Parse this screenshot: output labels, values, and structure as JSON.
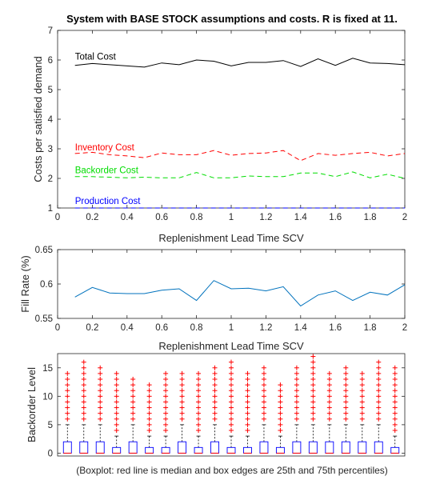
{
  "title": "System with BASE STOCK assumptions and costs.  R is fixed at 11.",
  "caption": "(Boxplot: red line is median and box edges are 25th and 75th percentiles)",
  "colors": {
    "axis": "#262626",
    "total": "#000000",
    "inventory": "#ff0000",
    "backorder": "#00dd00",
    "production": "#0000ff",
    "fill": "#0072bd",
    "box": "#0000ff",
    "outlier": "#ff0000"
  },
  "chart_data": [
    {
      "type": "line",
      "title": "System with BASE STOCK assumptions and costs.  R is fixed at 11.",
      "xlabel": "Replenishment Lead Time SCV",
      "ylabel": "Costs per satisfied demand",
      "xlim": [
        0,
        2
      ],
      "ylim": [
        1,
        7
      ],
      "xticks": [
        "0",
        "0.2",
        "0.4",
        "0.6",
        "0.8",
        "1",
        "1.2",
        "1.4",
        "1.6",
        "1.8",
        "2"
      ],
      "yticks": [
        "1",
        "2",
        "3",
        "4",
        "5",
        "6",
        "7"
      ],
      "x": [
        0.1,
        0.2,
        0.3,
        0.4,
        0.5,
        0.6,
        0.7,
        0.8,
        0.9,
        1.0,
        1.1,
        1.2,
        1.3,
        1.4,
        1.5,
        1.6,
        1.7,
        1.8,
        1.9,
        2.0
      ],
      "series": [
        {
          "name": "Total Cost",
          "style": "solid",
          "color": "#000000",
          "values": [
            5.82,
            5.88,
            5.84,
            5.8,
            5.76,
            5.9,
            5.84,
            6.0,
            5.96,
            5.8,
            5.92,
            5.92,
            5.98,
            5.78,
            6.04,
            5.82,
            6.06,
            5.9,
            5.88,
            5.84
          ]
        },
        {
          "name": "Inventory Cost",
          "style": "dashed",
          "color": "#ff0000",
          "values": [
            2.84,
            2.88,
            2.8,
            2.76,
            2.7,
            2.86,
            2.8,
            2.8,
            2.94,
            2.78,
            2.84,
            2.86,
            2.94,
            2.6,
            2.84,
            2.78,
            2.84,
            2.88,
            2.76,
            2.84
          ]
        },
        {
          "name": "Backorder Cost",
          "style": "dashed",
          "color": "#00dd00",
          "values": [
            2.06,
            2.06,
            2.04,
            2.02,
            2.04,
            2.02,
            2.02,
            2.2,
            2.02,
            2.02,
            2.08,
            2.06,
            2.06,
            2.18,
            2.18,
            2.06,
            2.22,
            2.02,
            2.14,
            2.0
          ]
        },
        {
          "name": "Production Cost",
          "style": "dashed",
          "color": "#0000ff",
          "values": [
            1.0,
            1.0,
            1.0,
            1.0,
            1.0,
            1.0,
            1.0,
            1.0,
            1.0,
            1.0,
            1.0,
            1.0,
            1.0,
            1.0,
            1.0,
            1.0,
            1.0,
            1.0,
            1.0,
            1.0
          ]
        }
      ],
      "annotations": [
        "Total Cost",
        "Inventory Cost",
        "Backorder Cost",
        "Production Cost"
      ]
    },
    {
      "type": "line",
      "xlabel": "Replenishment Lead Time SCV",
      "ylabel": "Fill Rate (%)",
      "xlim": [
        0,
        2
      ],
      "ylim": [
        0.55,
        0.65
      ],
      "xticks": [
        "0",
        "0.2",
        "0.4",
        "0.6",
        "0.8",
        "1",
        "1.2",
        "1.4",
        "1.6",
        "1.8",
        "2"
      ],
      "yticks": [
        "0.55",
        "0.6",
        "0.65"
      ],
      "x": [
        0.1,
        0.2,
        0.3,
        0.4,
        0.5,
        0.6,
        0.7,
        0.8,
        0.9,
        1.0,
        1.1,
        1.2,
        1.3,
        1.4,
        1.5,
        1.6,
        1.7,
        1.8,
        1.9,
        2.0
      ],
      "series": [
        {
          "color": "#0072bd",
          "values": [
            0.581,
            0.595,
            0.587,
            0.586,
            0.586,
            0.591,
            0.593,
            0.576,
            0.605,
            0.593,
            0.594,
            0.59,
            0.596,
            0.568,
            0.584,
            0.59,
            0.576,
            0.588,
            0.584,
            0.599
          ]
        }
      ]
    },
    {
      "type": "boxplot",
      "ylabel": "Backorder Level",
      "ylim": [
        -0.5,
        17.5
      ],
      "yticks": [
        "0",
        "5",
        "10",
        "15"
      ],
      "boxes": [
        {
          "q1": 0,
          "median": 0,
          "q3": 2,
          "whisker_high": 5,
          "outlier_max": 14
        },
        {
          "q1": 0,
          "median": 0,
          "q3": 2,
          "whisker_high": 5,
          "outlier_max": 16
        },
        {
          "q1": 0,
          "median": 0,
          "q3": 2,
          "whisker_high": 5,
          "outlier_max": 15
        },
        {
          "q1": 0,
          "median": 0,
          "q3": 1,
          "whisker_high": 3,
          "outlier_max": 14
        },
        {
          "q1": 0,
          "median": 0,
          "q3": 2,
          "whisker_high": 5,
          "outlier_max": 13
        },
        {
          "q1": 0,
          "median": 0,
          "q3": 1,
          "whisker_high": 3,
          "outlier_max": 12
        },
        {
          "q1": 0,
          "median": 0,
          "q3": 1,
          "whisker_high": 3,
          "outlier_max": 14
        },
        {
          "q1": 0,
          "median": 0,
          "q3": 2,
          "whisker_high": 5,
          "outlier_max": 14
        },
        {
          "q1": 0,
          "median": 0,
          "q3": 1,
          "whisker_high": 3,
          "outlier_max": 14
        },
        {
          "q1": 0,
          "median": 0,
          "q3": 2,
          "whisker_high": 5,
          "outlier_max": 15
        },
        {
          "q1": 0,
          "median": 0,
          "q3": 1,
          "whisker_high": 3,
          "outlier_max": 16
        },
        {
          "q1": 0,
          "median": 0,
          "q3": 1,
          "whisker_high": 3,
          "outlier_max": 14
        },
        {
          "q1": 0,
          "median": 0,
          "q3": 2,
          "whisker_high": 5,
          "outlier_max": 15
        },
        {
          "q1": 0,
          "median": 0,
          "q3": 1,
          "whisker_high": 3,
          "outlier_max": 12
        },
        {
          "q1": 0,
          "median": 0,
          "q3": 2,
          "whisker_high": 5,
          "outlier_max": 15
        },
        {
          "q1": 0,
          "median": 0,
          "q3": 2,
          "whisker_high": 5,
          "outlier_max": 17
        },
        {
          "q1": 0,
          "median": 0,
          "q3": 2,
          "whisker_high": 5,
          "outlier_max": 14
        },
        {
          "q1": 0,
          "median": 0,
          "q3": 2,
          "whisker_high": 5,
          "outlier_max": 15
        },
        {
          "q1": 0,
          "median": 0,
          "q3": 2,
          "whisker_high": 5,
          "outlier_max": 14
        },
        {
          "q1": 0,
          "median": 0,
          "q3": 2,
          "whisker_high": 5,
          "outlier_max": 16
        },
        {
          "q1": 0,
          "median": 0,
          "q3": 1,
          "whisker_high": 3,
          "outlier_max": 15
        }
      ]
    }
  ]
}
